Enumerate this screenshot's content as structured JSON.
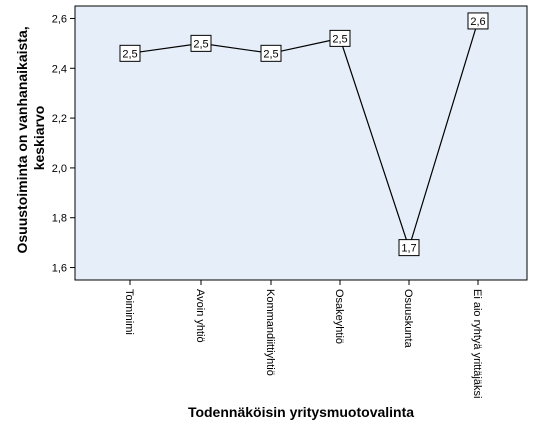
{
  "chart_data": {
    "type": "line",
    "xlabel": "Todennäköisin yritysmuotovalinta",
    "ylabel_lines": [
      "Osuustoiminta on vanhanaikaista,",
      "keskiarvo"
    ],
    "categories": [
      "Toiminimi",
      "Avoin yhtiö",
      "Kommandiittiyhtiö",
      "Osakeyhtiö",
      "Osuuskunta",
      "Ei aio ryhtyä yrittäjäksi"
    ],
    "values": [
      2.46,
      2.5,
      2.46,
      2.52,
      1.68,
      2.59
    ],
    "data_labels": [
      "2,5",
      "2,5",
      "2,5",
      "2,5",
      "1,7",
      "2,6"
    ],
    "ylim": [
      1.55,
      2.65
    ],
    "yticks": [
      1.6,
      1.8,
      2.0,
      2.2,
      2.4,
      2.6
    ],
    "ytick_labels": [
      "1,6",
      "1,8",
      "2,0",
      "2,2",
      "2,4",
      "2,6"
    ],
    "grid": false,
    "colors": {
      "plot_background": "#e6eff9",
      "line": "#000000",
      "axis": "#000000"
    }
  }
}
